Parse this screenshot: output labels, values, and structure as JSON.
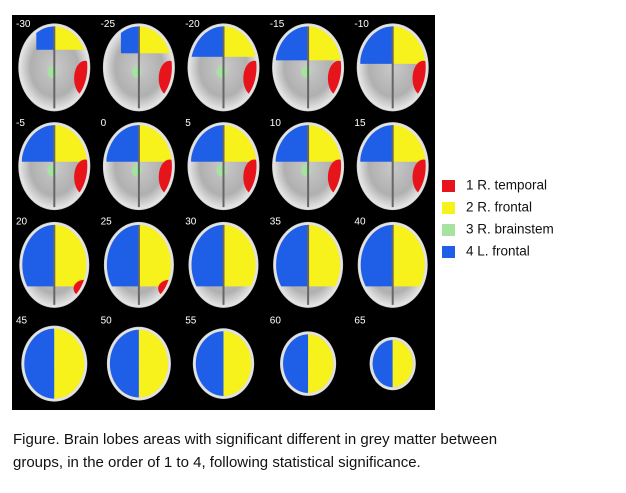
{
  "figure": {
    "slices": [
      "-30",
      "-25",
      "-20",
      "-15",
      "-10",
      "-5",
      "0",
      "5",
      "10",
      "15",
      "20",
      "25",
      "30",
      "35",
      "40",
      "45",
      "50",
      "55",
      "60",
      "65"
    ],
    "legend": [
      {
        "label": "1 R. temporal",
        "color": "#e8141c"
      },
      {
        "label": "2 R. frontal",
        "color": "#f7f21c"
      },
      {
        "label": "3 R. brainstem",
        "color": "#a6e3a0"
      },
      {
        "label": "4 L. frontal",
        "color": "#1f5ee6"
      }
    ],
    "caption": [
      "Figure. Brain lobes areas with significant different in grey matter between",
      "groups, in the order of 1 to 4, following statistical significance."
    ]
  }
}
